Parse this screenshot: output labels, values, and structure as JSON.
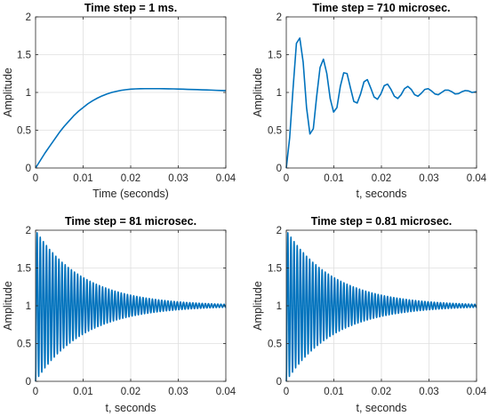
{
  "figure": {
    "background": "#ffffff",
    "line_color": "#0072bd"
  },
  "chart_data": [
    {
      "type": "line",
      "title": "Time step = 1 ms.",
      "xlabel": "Time (seconds)",
      "ylabel": "Amplitude",
      "xlim": [
        0,
        0.04
      ],
      "ylim": [
        0,
        2
      ],
      "xticks": [
        "0",
        "0.01",
        "0.02",
        "0.03",
        "0.04"
      ],
      "yticks": [
        "0",
        "0.5",
        "1",
        "1.5",
        "2"
      ],
      "grid": true,
      "series": [
        {
          "x": [
            0,
            0.001,
            0.002,
            0.003,
            0.004,
            0.005,
            0.006,
            0.007,
            0.008,
            0.009,
            0.01,
            0.011,
            0.012,
            0.013,
            0.014,
            0.015,
            0.016,
            0.017,
            0.018,
            0.019,
            0.02,
            0.021,
            0.022,
            0.023,
            0.024,
            0.025,
            0.026,
            0.027,
            0.028,
            0.029,
            0.03,
            0.031,
            0.032,
            0.033,
            0.034,
            0.035,
            0.036,
            0.037,
            0.038,
            0.039,
            0.04
          ],
          "y": [
            0,
            0.1,
            0.2,
            0.29,
            0.38,
            0.47,
            0.55,
            0.62,
            0.69,
            0.75,
            0.8,
            0.85,
            0.89,
            0.925,
            0.955,
            0.98,
            1.0,
            1.015,
            1.028,
            1.037,
            1.043,
            1.047,
            1.049,
            1.05,
            1.05,
            1.05,
            1.05,
            1.049,
            1.048,
            1.047,
            1.045,
            1.043,
            1.041,
            1.039,
            1.037,
            1.035,
            1.033,
            1.031,
            1.028,
            1.026,
            1.024
          ]
        }
      ]
    },
    {
      "type": "line",
      "title": "Time step = 710 microsec.",
      "xlabel": "t, seconds",
      "ylabel": "Amplitude",
      "xlim": [
        0,
        0.04
      ],
      "ylim": [
        0,
        2
      ],
      "xticks": [
        "0",
        "0.01",
        "0.02",
        "0.03",
        "0.04"
      ],
      "yticks": [
        "0",
        "0.5",
        "1",
        "1.5",
        "2"
      ],
      "grid": true,
      "series": [
        {
          "x": [
            0,
            0.00071,
            0.00142,
            0.00213,
            0.00284,
            0.00355,
            0.00426,
            0.00497,
            0.00568,
            0.00639,
            0.0071,
            0.00781,
            0.00852,
            0.00923,
            0.00994,
            0.01065,
            0.01136,
            0.01207,
            0.01278,
            0.01349,
            0.0142,
            0.01491,
            0.01562,
            0.01633,
            0.01704,
            0.01775,
            0.01846,
            0.01917,
            0.01988,
            0.02059,
            0.0213,
            0.02201,
            0.02272,
            0.02343,
            0.02414,
            0.02485,
            0.02556,
            0.02627,
            0.02698,
            0.02769,
            0.0284,
            0.02911,
            0.02982,
            0.03053,
            0.03124,
            0.03195,
            0.03266,
            0.03337,
            0.03408,
            0.03479,
            0.0355,
            0.03621,
            0.03692,
            0.03763,
            0.03834,
            0.03905,
            0.04
          ],
          "y": [
            0,
            0.4,
            1.05,
            1.65,
            1.72,
            1.4,
            0.8,
            0.45,
            0.52,
            0.95,
            1.33,
            1.44,
            1.25,
            0.92,
            0.74,
            0.8,
            1.08,
            1.26,
            1.25,
            1.06,
            0.88,
            0.86,
            0.98,
            1.14,
            1.17,
            1.06,
            0.94,
            0.91,
            0.98,
            1.09,
            1.11,
            1.04,
            0.95,
            0.92,
            0.97,
            1.05,
            1.08,
            1.04,
            0.97,
            0.95,
            0.99,
            1.04,
            1.05,
            1.02,
            0.98,
            0.97,
            1.0,
            1.03,
            1.03,
            1.01,
            0.98,
            0.985,
            1.01,
            1.025,
            1.02,
            1.0,
            1.01
          ]
        }
      ]
    },
    {
      "type": "line",
      "title": "Time step = 81 microsec.",
      "xlabel": "t, seconds",
      "ylabel": "Amplitude",
      "xlim": [
        0,
        0.04
      ],
      "ylim": [
        0,
        2
      ],
      "xticks": [
        "0",
        "0.01",
        "0.02",
        "0.03",
        "0.04"
      ],
      "yticks": [
        "0",
        "0.5",
        "1",
        "1.5",
        "2"
      ],
      "grid": true,
      "oscillation": {
        "final_value": 1,
        "initial_amplitude": 1,
        "decay_time_constant_s": 0.0102,
        "period_s": 0.000655,
        "sample_step_s": 8.1e-05
      }
    },
    {
      "type": "line",
      "title": "Time step = 0.81 microsec.",
      "xlabel": "t, seconds",
      "ylabel": "Amplitude",
      "xlim": [
        0,
        0.04
      ],
      "ylim": [
        0,
        2
      ],
      "xticks": [
        "0",
        "0.01",
        "0.02",
        "0.03",
        "0.04"
      ],
      "yticks": [
        "0",
        "0.5",
        "1",
        "1.5",
        "2"
      ],
      "grid": true,
      "oscillation": {
        "final_value": 1,
        "initial_amplitude": 1,
        "decay_time_constant_s": 0.0102,
        "period_s": 0.000655,
        "sample_step_s": 8.1e-07
      }
    }
  ]
}
